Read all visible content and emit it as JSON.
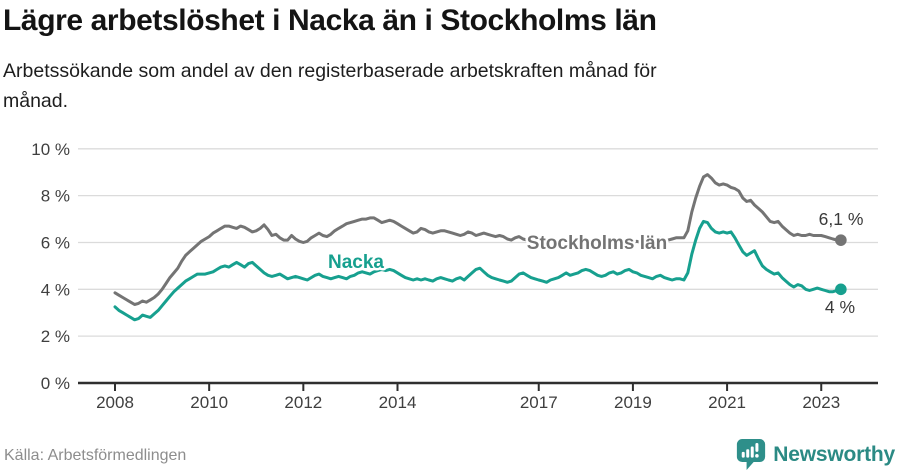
{
  "header": {
    "title": "Lägre arbetslöshet i Nacka än i Stockholms län",
    "subtitle": "Arbetssökande som andel av den registerbaserade arbetskraften månad för månad."
  },
  "footer": {
    "source": "Källa: Arbetsförmedlingen",
    "brand": "Newsworthy"
  },
  "colors": {
    "nacka_line": "#17A08F",
    "stockholm_line": "#747474",
    "axis": "#2F2F2F",
    "gridline": "#DBDBDB",
    "tick_label": "#3F3F3F",
    "end_label": "#3A3A3A",
    "brand_teal": "#2B8A84"
  },
  "chart_data": {
    "type": "line",
    "title": "Lägre arbetslöshet i Nacka än i Stockholms län",
    "subtitle": "Arbetssökande som andel av den registerbaserade arbetskraften månad för månad.",
    "unit": "%",
    "grid": "horizontal",
    "legend_position": "inline-labels",
    "x_interval": "monthly",
    "months_start": "2008-01",
    "months_end": "2023-06",
    "x_ticks": [
      2008,
      2010,
      2012,
      2014,
      2017,
      2019,
      2021,
      2023
    ],
    "y_ticks": [
      0,
      2,
      4,
      6,
      8,
      10
    ],
    "y_tick_suffix": " %",
    "ylim": [
      0,
      10
    ],
    "series": [
      {
        "name": "Stockholms län",
        "color": "#747474",
        "end_label": "6,1 %",
        "end_value": 6.1,
        "values": [
          3.85,
          3.75,
          3.65,
          3.55,
          3.45,
          3.35,
          3.4,
          3.5,
          3.45,
          3.55,
          3.65,
          3.8,
          4.0,
          4.25,
          4.5,
          4.7,
          4.9,
          5.2,
          5.45,
          5.6,
          5.75,
          5.9,
          6.05,
          6.15,
          6.25,
          6.4,
          6.5,
          6.6,
          6.7,
          6.7,
          6.65,
          6.6,
          6.7,
          6.65,
          6.55,
          6.45,
          6.5,
          6.6,
          6.75,
          6.55,
          6.3,
          6.35,
          6.2,
          6.1,
          6.1,
          6.3,
          6.15,
          6.05,
          6.0,
          6.05,
          6.2,
          6.3,
          6.4,
          6.3,
          6.25,
          6.35,
          6.5,
          6.6,
          6.7,
          6.8,
          6.85,
          6.9,
          6.95,
          7.0,
          7.0,
          7.05,
          7.05,
          6.95,
          6.85,
          6.9,
          6.95,
          6.9,
          6.8,
          6.7,
          6.6,
          6.5,
          6.4,
          6.45,
          6.6,
          6.55,
          6.45,
          6.4,
          6.45,
          6.5,
          6.5,
          6.45,
          6.4,
          6.35,
          6.3,
          6.35,
          6.45,
          6.4,
          6.3,
          6.35,
          6.4,
          6.35,
          6.3,
          6.25,
          6.3,
          6.25,
          6.15,
          6.1,
          6.2,
          6.25,
          6.15,
          6.1,
          6.05,
          6.0,
          6.05,
          6.1,
          6.05,
          6.0,
          5.95,
          6.0,
          6.1,
          6.15,
          6.05,
          6.0,
          5.95,
          6.0,
          6.0,
          5.95,
          5.9,
          5.85,
          5.8,
          5.85,
          5.95,
          6.0,
          5.9,
          5.85,
          5.9,
          5.95,
          6.0,
          6.05,
          6.0,
          5.95,
          6.0,
          6.05,
          6.15,
          6.2,
          6.1,
          6.1,
          6.15,
          6.2,
          6.2,
          6.2,
          6.5,
          7.3,
          7.9,
          8.4,
          8.8,
          8.9,
          8.75,
          8.55,
          8.45,
          8.5,
          8.45,
          8.35,
          8.3,
          8.2,
          7.9,
          7.75,
          7.8,
          7.6,
          7.45,
          7.3,
          7.1,
          6.9,
          6.85,
          6.9,
          6.7,
          6.55,
          6.4,
          6.3,
          6.35,
          6.3,
          6.3,
          6.35,
          6.3,
          6.3,
          6.3,
          6.25,
          6.2,
          6.15,
          6.1,
          6.1
        ]
      },
      {
        "name": "Nacka",
        "color": "#17A08F",
        "end_label": "4 %",
        "end_value": 4.0,
        "values": [
          3.25,
          3.1,
          3.0,
          2.9,
          2.8,
          2.7,
          2.75,
          2.9,
          2.85,
          2.8,
          2.95,
          3.1,
          3.3,
          3.5,
          3.7,
          3.9,
          4.05,
          4.2,
          4.35,
          4.45,
          4.55,
          4.65,
          4.65,
          4.65,
          4.7,
          4.75,
          4.85,
          4.95,
          5.0,
          4.95,
          5.05,
          5.15,
          5.05,
          4.95,
          5.1,
          5.15,
          5.0,
          4.85,
          4.7,
          4.6,
          4.55,
          4.6,
          4.65,
          4.55,
          4.45,
          4.5,
          4.55,
          4.5,
          4.45,
          4.4,
          4.5,
          4.6,
          4.65,
          4.55,
          4.5,
          4.45,
          4.5,
          4.55,
          4.5,
          4.45,
          4.55,
          4.6,
          4.7,
          4.75,
          4.7,
          4.65,
          4.75,
          4.8,
          4.85,
          4.8,
          4.85,
          4.8,
          4.7,
          4.6,
          4.5,
          4.45,
          4.4,
          4.45,
          4.4,
          4.45,
          4.4,
          4.35,
          4.45,
          4.5,
          4.45,
          4.4,
          4.35,
          4.45,
          4.5,
          4.4,
          4.55,
          4.7,
          4.85,
          4.9,
          4.75,
          4.6,
          4.5,
          4.45,
          4.4,
          4.35,
          4.3,
          4.35,
          4.5,
          4.65,
          4.7,
          4.6,
          4.5,
          4.45,
          4.4,
          4.35,
          4.3,
          4.4,
          4.45,
          4.5,
          4.6,
          4.7,
          4.6,
          4.65,
          4.7,
          4.8,
          4.85,
          4.8,
          4.7,
          4.6,
          4.55,
          4.6,
          4.7,
          4.75,
          4.65,
          4.7,
          4.8,
          4.85,
          4.75,
          4.7,
          4.6,
          4.55,
          4.5,
          4.45,
          4.55,
          4.6,
          4.5,
          4.45,
          4.4,
          4.45,
          4.45,
          4.4,
          4.7,
          5.5,
          6.1,
          6.6,
          6.9,
          6.85,
          6.6,
          6.45,
          6.4,
          6.45,
          6.4,
          6.45,
          6.2,
          5.9,
          5.6,
          5.45,
          5.55,
          5.65,
          5.3,
          5.0,
          4.85,
          4.75,
          4.65,
          4.7,
          4.5,
          4.35,
          4.2,
          4.1,
          4.2,
          4.15,
          4.0,
          3.95,
          4.0,
          4.05,
          4.0,
          3.95,
          3.9,
          3.9,
          3.95,
          4.0
        ]
      }
    ]
  }
}
